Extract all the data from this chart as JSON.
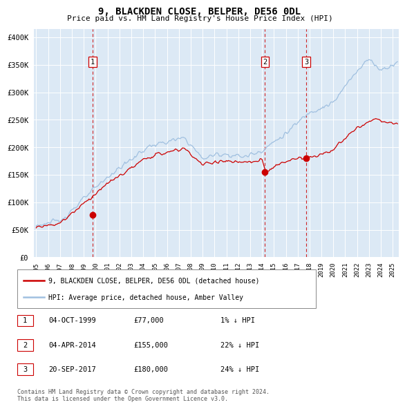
{
  "title": "9, BLACKDEN CLOSE, BELPER, DE56 0DL",
  "subtitle": "Price paid vs. HM Land Registry's House Price Index (HPI)",
  "ytick_values": [
    0,
    50000,
    100000,
    150000,
    200000,
    250000,
    300000,
    350000,
    400000
  ],
  "ylim": [
    0,
    415000
  ],
  "xlim_start": 1994.8,
  "xlim_end": 2025.5,
  "hpi_color": "#a0c0e0",
  "sale_color": "#cc0000",
  "plot_bg_color": "#dce9f5",
  "grid_color": "#ffffff",
  "vline_color": "#cc0000",
  "sale_points": [
    {
      "year_float": 1999.75,
      "price": 77000,
      "label": "1"
    },
    {
      "year_float": 2014.25,
      "price": 155000,
      "label": "2"
    },
    {
      "year_float": 2017.72,
      "price": 180000,
      "label": "3"
    }
  ],
  "legend_entries": [
    "9, BLACKDEN CLOSE, BELPER, DE56 0DL (detached house)",
    "HPI: Average price, detached house, Amber Valley"
  ],
  "table_rows": [
    {
      "num": "1",
      "date": "04-OCT-1999",
      "price": "£77,000",
      "change": "1% ↓ HPI"
    },
    {
      "num": "2",
      "date": "04-APR-2014",
      "price": "£155,000",
      "change": "22% ↓ HPI"
    },
    {
      "num": "3",
      "date": "20-SEP-2017",
      "price": "£180,000",
      "change": "24% ↓ HPI"
    }
  ],
  "footnote1": "Contains HM Land Registry data © Crown copyright and database right 2024.",
  "footnote2": "This data is licensed under the Open Government Licence v3.0.",
  "xtick_years": [
    1995,
    1996,
    1997,
    1998,
    1999,
    2000,
    2001,
    2002,
    2003,
    2004,
    2005,
    2006,
    2007,
    2008,
    2009,
    2010,
    2011,
    2012,
    2013,
    2014,
    2015,
    2016,
    2017,
    2018,
    2019,
    2020,
    2021,
    2022,
    2023,
    2024,
    2025
  ]
}
